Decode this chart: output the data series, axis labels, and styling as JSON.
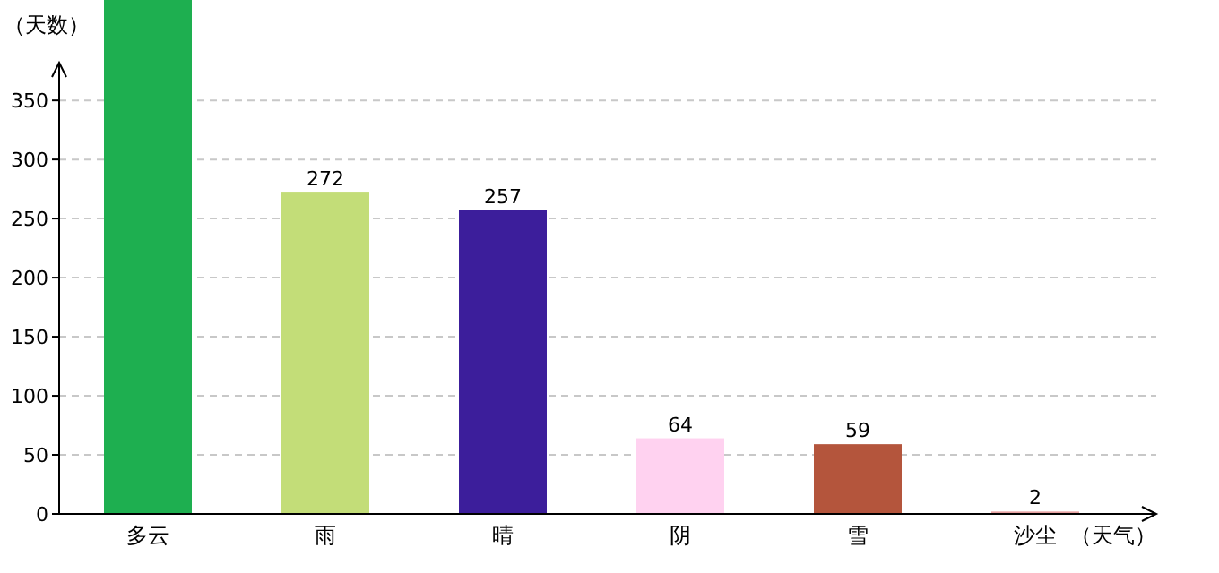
{
  "chart_data": {
    "type": "bar",
    "xlabel": "（天气）",
    "ylabel": "（天数）",
    "categories": [
      "多云",
      "雨",
      "晴",
      "阴",
      "雪",
      "沙尘"
    ],
    "values": [
      435,
      272,
      257,
      64,
      59,
      2
    ],
    "colors": [
      "#1eaf50",
      "#c3dd78",
      "#3c1e9b",
      "#ffd2f0",
      "#b4553c",
      "#e6a0a0"
    ],
    "value_labels": [
      null,
      "272",
      "257",
      "64",
      "59",
      "2"
    ],
    "ylim": [
      0,
      435
    ],
    "yticks": [
      0,
      50,
      100,
      150,
      200,
      250,
      300,
      350
    ],
    "grid": "y"
  }
}
